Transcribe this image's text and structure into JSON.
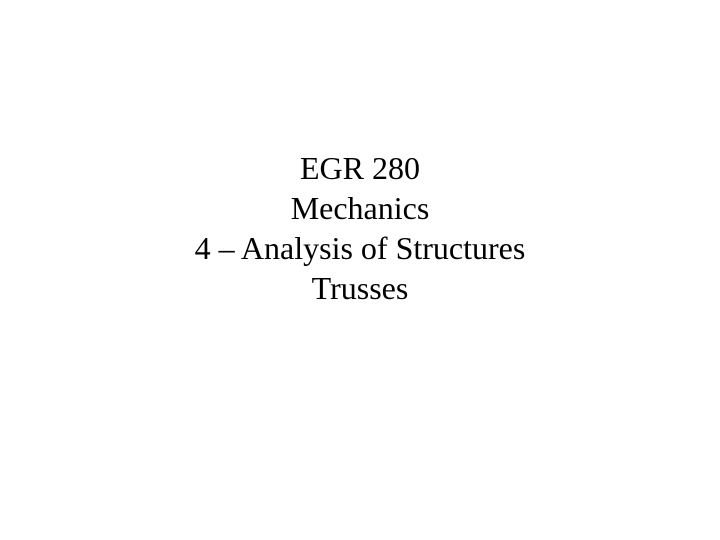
{
  "slide": {
    "line1": "EGR 280",
    "line2": "Mechanics",
    "line3": "4 – Analysis of Structures",
    "line4": "Trusses",
    "background_color": "#ffffff",
    "text_color": "#000000",
    "font_family": "Times New Roman",
    "font_size": 32,
    "line_height": 1.25
  }
}
